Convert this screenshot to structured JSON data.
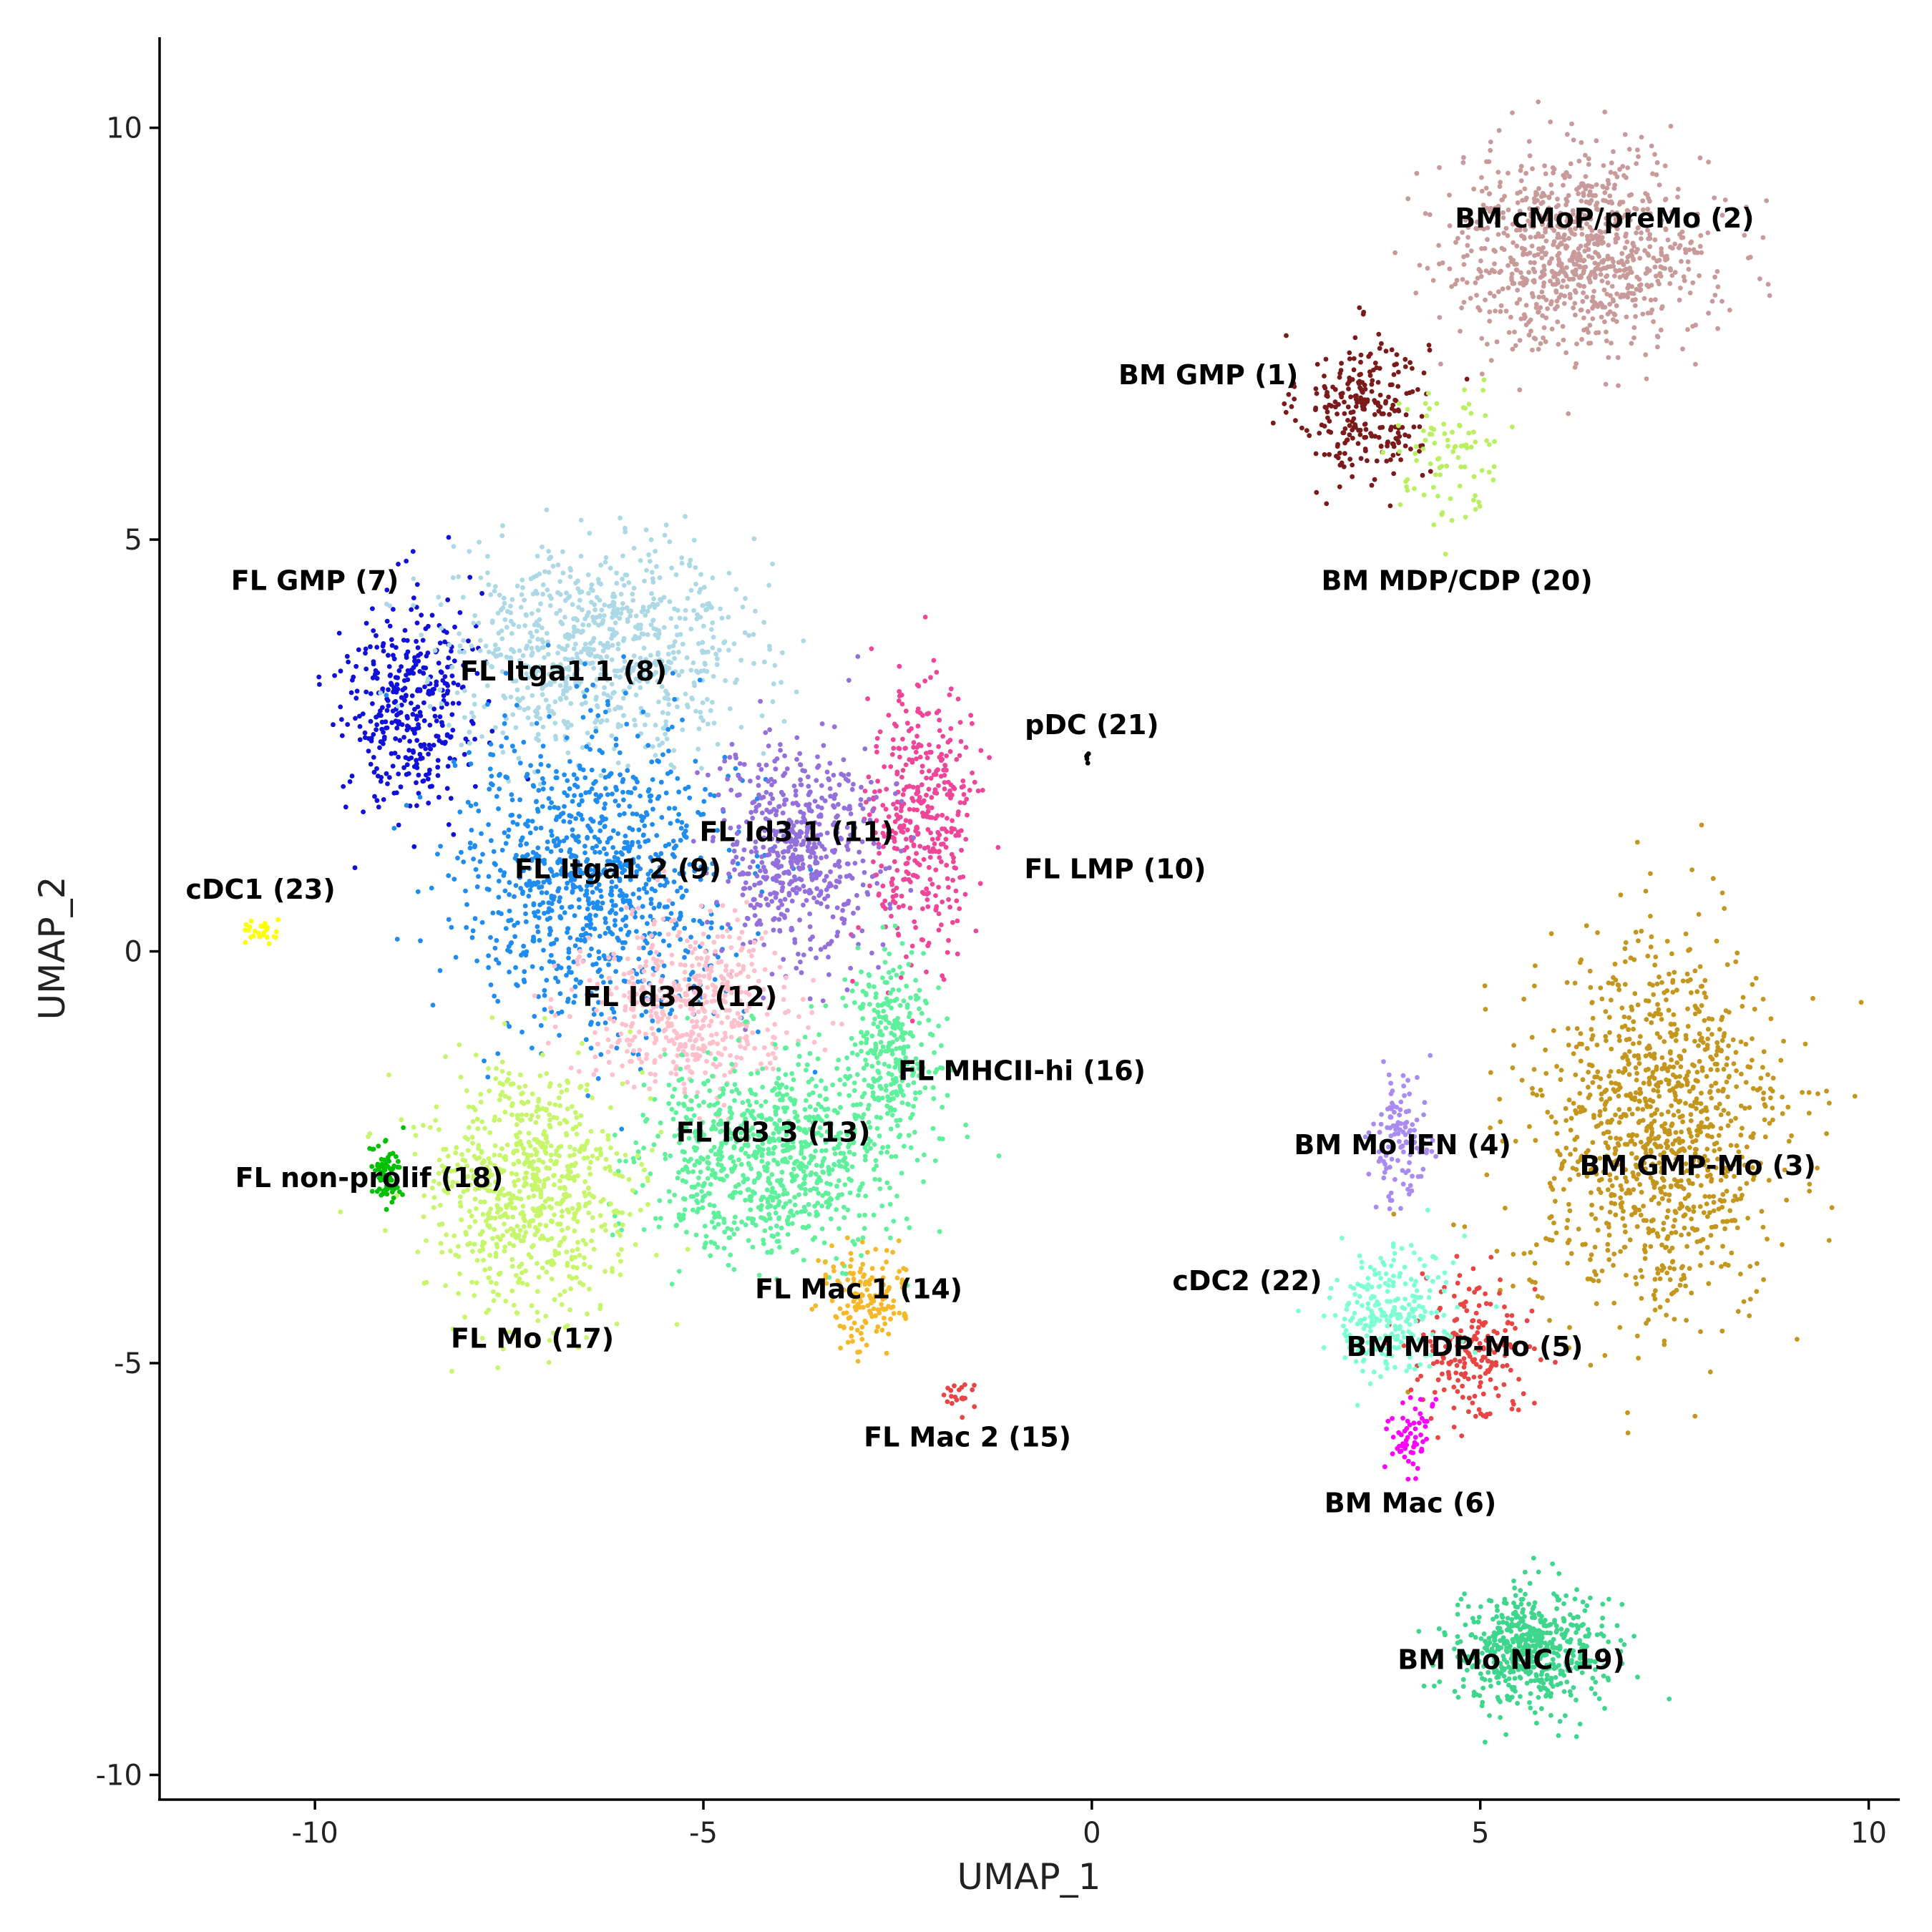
{
  "chart_data": {
    "type": "scatter",
    "xlabel": "UMAP_1",
    "ylabel": "UMAP_2",
    "xlim": [
      -12,
      10.4
    ],
    "ylim": [
      -10.3,
      11.1
    ],
    "xticks": [
      -10,
      -5,
      0,
      5,
      10
    ],
    "yticks": [
      10,
      5,
      0,
      -5,
      -10
    ],
    "grid": false,
    "legend": "none",
    "clusters": [
      {
        "name": "BM GMP (1)",
        "color": "#7B1A1A",
        "cx": 3.5,
        "cy": 6.6,
        "sx": 0.55,
        "sy": 0.6,
        "n": 260,
        "lx": 1.5,
        "ly": 7.0
      },
      {
        "name": "BM cMoP/preMo (2)",
        "color": "#C99A9A",
        "cx": 6.3,
        "cy": 8.5,
        "sx": 1.1,
        "sy": 0.8,
        "n": 900,
        "lx": 6.6,
        "ly": 8.9
      },
      {
        "name": "BM GMP-Mo (3)",
        "color": "#C4961D",
        "cx": 7.3,
        "cy": -2.2,
        "sx": 1.1,
        "sy": 1.5,
        "n": 1100,
        "lx": 7.8,
        "ly": -2.6
      },
      {
        "name": "BM Mo IFN (4)",
        "color": "#A98BF2",
        "cx": 4.0,
        "cy": -2.3,
        "sx": 0.25,
        "sy": 0.5,
        "n": 120,
        "lx": 4.0,
        "ly": -2.35
      },
      {
        "name": "BM MDP-Mo (5)",
        "color": "#E94545",
        "cx": 4.9,
        "cy": -4.8,
        "sx": 0.45,
        "sy": 0.6,
        "n": 200,
        "lx": 4.8,
        "ly": -4.8
      },
      {
        "name": "BM Mac (6)",
        "color": "#FF00FF",
        "cx": 4.1,
        "cy": -5.9,
        "sx": 0.2,
        "sy": 0.3,
        "n": 60,
        "lx": 4.1,
        "ly": -6.7
      },
      {
        "name": "FL GMP (7)",
        "color": "#1010D8",
        "cx": -8.8,
        "cy": 3.0,
        "sx": 0.55,
        "sy": 0.9,
        "n": 380,
        "lx": -10.0,
        "ly": 4.5
      },
      {
        "name": "FL Itga1 1 (8)",
        "color": "#ADD8E6",
        "cx": -6.3,
        "cy": 3.7,
        "sx": 1.3,
        "sy": 0.8,
        "n": 800,
        "lx": -6.8,
        "ly": 3.4
      },
      {
        "name": "FL Itga1 2 (9)",
        "color": "#1E8CF0",
        "cx": -6.4,
        "cy": 0.9,
        "sx": 1.2,
        "sy": 1.2,
        "n": 1000,
        "lx": -6.1,
        "ly": 1.0
      },
      {
        "name": "FL LMP (10)",
        "color": "#F0469A",
        "cx": -2.2,
        "cy": 1.6,
        "sx": 0.45,
        "sy": 1.1,
        "n": 400,
        "lx": 0.3,
        "ly": 1.0
      },
      {
        "name": "FL Id3 1 (11)",
        "color": "#9370DB",
        "cx": -3.8,
        "cy": 1.2,
        "sx": 0.7,
        "sy": 0.9,
        "n": 550,
        "lx": -3.8,
        "ly": 1.45
      },
      {
        "name": "FL Id3 2 (12)",
        "color": "#FFC0CB",
        "cx": -5.2,
        "cy": -0.7,
        "sx": 0.9,
        "sy": 0.7,
        "n": 500,
        "lx": -5.3,
        "ly": -0.55
      },
      {
        "name": "FL Id3 3 (13)",
        "color": "#5EF09A",
        "cx": -4.2,
        "cy": -2.5,
        "sx": 1.1,
        "sy": 0.75,
        "n": 850,
        "lx": -4.1,
        "ly": -2.2
      },
      {
        "name": "FL Mac 1 (14)",
        "color": "#F5B82A",
        "cx": -2.9,
        "cy": -4.2,
        "sx": 0.35,
        "sy": 0.4,
        "n": 150,
        "lx": -3.0,
        "ly": -4.1
      },
      {
        "name": "FL Mac 2 (15)",
        "color": "#E94545",
        "cx": -1.7,
        "cy": -5.4,
        "sx": 0.15,
        "sy": 0.12,
        "n": 20,
        "lx": -1.6,
        "ly": -5.9
      },
      {
        "name": "FL MHCII-hi (16)",
        "color": "#5EF09A",
        "cx": -2.6,
        "cy": -1.2,
        "sx": 0.4,
        "sy": 0.8,
        "n": 300,
        "lx": -0.9,
        "ly": -1.45
      },
      {
        "name": "FL Mo (17)",
        "color": "#C6F76A",
        "cx": -7.3,
        "cy": -2.9,
        "sx": 0.9,
        "sy": 1.0,
        "n": 750,
        "lx": -7.2,
        "ly": -4.7
      },
      {
        "name": "FL non-prolif (18)",
        "color": "#00C000",
        "cx": -9.1,
        "cy": -2.7,
        "sx": 0.15,
        "sy": 0.25,
        "n": 70,
        "lx": -9.3,
        "ly": -2.75
      },
      {
        "name": "BM Mo NC (19)",
        "color": "#3DD68C",
        "cx": 5.6,
        "cy": -8.5,
        "sx": 0.65,
        "sy": 0.5,
        "n": 550,
        "lx": 5.4,
        "ly": -8.6
      },
      {
        "name": "BM MDP/CDP (20)",
        "color": "#B8F060",
        "cx": 4.6,
        "cy": 6.0,
        "sx": 0.45,
        "sy": 0.6,
        "n": 90,
        "lx": 4.7,
        "ly": 4.5
      },
      {
        "name": "pDC (21)",
        "color": "#000000",
        "cx": -0.05,
        "cy": 2.35,
        "sx": 0.04,
        "sy": 0.04,
        "n": 5,
        "lx": 0.0,
        "ly": 2.75
      },
      {
        "name": "cDC2 (22)",
        "color": "#7FFFD4",
        "cx": 3.8,
        "cy": -4.4,
        "sx": 0.5,
        "sy": 0.55,
        "n": 260,
        "lx": 2.0,
        "ly": -4.0
      },
      {
        "name": "cDC1 (23)",
        "color": "#FFFF00",
        "cx": -10.7,
        "cy": 0.25,
        "sx": 0.2,
        "sy": 0.1,
        "n": 25,
        "lx": -10.7,
        "ly": 0.75
      }
    ]
  }
}
